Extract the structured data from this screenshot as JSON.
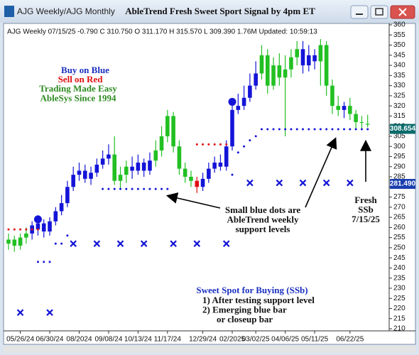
{
  "window": {
    "tab": "AJG Weekly/AJG Monthly",
    "title": "AbleTrend Fresh Sweet Sport Signal by 4pm ET"
  },
  "chart_data": {
    "type": "candlestick",
    "header": "AJG  Weekly 07/15/25 -0.790 C 310.750 O 311.170 H 315.570 L 309.390 1.76M Updated: 10:59:13",
    "categories": [
      null,
      null,
      "05/26/24",
      null,
      null,
      null,
      null,
      "06/30/24",
      null,
      null,
      null,
      null,
      "08/2024",
      null,
      null,
      null,
      null,
      "09/08/24",
      null,
      null,
      null,
      null,
      "10/13/24",
      null,
      null,
      null,
      null,
      "11/17/24",
      null,
      null,
      null,
      null,
      null,
      "12/29/24",
      null,
      null,
      null,
      null,
      "02/2025",
      null,
      null,
      null,
      "03/02/25",
      null,
      null,
      null,
      null,
      "04/06/25",
      null,
      null,
      null,
      null,
      "05/11/25",
      null,
      null,
      null,
      null,
      null,
      "06/22/25",
      null,
      null,
      null
    ],
    "open": [
      252,
      254,
      251,
      255,
      257,
      259,
      262,
      258,
      263,
      268,
      272,
      280,
      286,
      288,
      284,
      287,
      291,
      294,
      296,
      283,
      286,
      290,
      288,
      292,
      288,
      293,
      298,
      305,
      315,
      300,
      289,
      285,
      283,
      280,
      284,
      289,
      292,
      290,
      300,
      318,
      320,
      324,
      330,
      336,
      345,
      330,
      340,
      334,
      338,
      344,
      348,
      340,
      345,
      342,
      350,
      330,
      320,
      318,
      320,
      316,
      312,
      311.17
    ],
    "close": [
      254,
      251,
      255,
      257,
      261,
      262,
      258,
      263,
      268,
      272,
      280,
      286,
      288,
      284,
      287,
      291,
      294,
      296,
      283,
      286,
      290,
      288,
      292,
      288,
      293,
      298,
      305,
      315,
      300,
      289,
      285,
      283,
      280,
      284,
      289,
      292,
      290,
      300,
      318,
      320,
      324,
      330,
      336,
      345,
      330,
      340,
      334,
      338,
      344,
      348,
      340,
      345,
      342,
      350,
      330,
      320,
      318,
      320,
      316,
      312,
      312,
      310.75
    ],
    "high": [
      257,
      256,
      257,
      260,
      263,
      266,
      264,
      265,
      270,
      276,
      283,
      290,
      292,
      291,
      290,
      294,
      298,
      301,
      305,
      290,
      293,
      295,
      296,
      294,
      297,
      303,
      310,
      318,
      317,
      303,
      292,
      288,
      285,
      287,
      292,
      295,
      296,
      303,
      322,
      326,
      330,
      336,
      342,
      350,
      348,
      344,
      346,
      345,
      348,
      352,
      352,
      350,
      348,
      353,
      352,
      333,
      325,
      322,
      324,
      318,
      315,
      315.57
    ],
    "low": [
      249,
      248,
      249,
      252,
      254,
      256,
      255,
      256,
      261,
      266,
      270,
      278,
      283,
      282,
      281,
      285,
      289,
      291,
      281,
      279,
      282,
      284,
      286,
      285,
      286,
      290,
      295,
      302,
      297,
      286,
      282,
      280,
      277,
      278,
      282,
      287,
      288,
      288,
      298,
      316,
      318,
      322,
      328,
      333,
      326,
      328,
      330,
      305,
      334,
      340,
      336,
      337,
      338,
      330,
      325,
      316,
      315,
      314,
      313,
      309,
      309,
      309.39
    ],
    "candle_colors": [
      "#22c022",
      "#22c022",
      "#22c022",
      "#22c022",
      "#1414d8",
      "#1414d8",
      "#1414d8",
      "#1414d8",
      "#1414d8",
      "#1414d8",
      "#1414d8",
      "#1414d8",
      "#1414d8",
      "#1414d8",
      "#1414d8",
      "#1414d8",
      "#1414d8",
      "#1414d8",
      "#22c022",
      "#22c022",
      "#22c022",
      "#1414d8",
      "#1414d8",
      "#1414d8",
      "#1414d8",
      "#22c022",
      "#22c022",
      "#22c022",
      "#22c022",
      "#22c022",
      "#22c022",
      "#22c022",
      "#e01010",
      "#1414d8",
      "#1414d8",
      "#1414d8",
      "#1414d8",
      "#1414d8",
      "#1414d8",
      "#1414d8",
      "#1414d8",
      "#1414d8",
      "#1414d8",
      "#22c022",
      "#22c022",
      "#22c022",
      "#22c022",
      "#22c022",
      "#22c022",
      "#22c022",
      "#1414d8",
      "#1414d8",
      "#1414d8",
      "#22c022",
      "#22c022",
      "#22c022",
      "#22c022",
      "#1414d8",
      "#22c022",
      "#22c022",
      "#22c022",
      "#22c022"
    ],
    "markers": [
      {
        "kind": "dot",
        "color": "#1414d8",
        "values": [
          null,
          null,
          null,
          null,
          null,
          243,
          243,
          243,
          252,
          252,
          256,
          null,
          null,
          null,
          null,
          null,
          279,
          279,
          279,
          279,
          279,
          279,
          279,
          279,
          279,
          279,
          279,
          279,
          null,
          null,
          null,
          null,
          null,
          null,
          null,
          null,
          null,
          null,
          286,
          297,
          300,
          303,
          305,
          308.5,
          308.5,
          308.5,
          308.5,
          308.5,
          308.5,
          308.5,
          308.5,
          308.5,
          308.5,
          308.5,
          308.5,
          308.5,
          308.5,
          308.5,
          308.5,
          308.5,
          308.5,
          308.5
        ]
      },
      {
        "kind": "dot",
        "color": "#e01010",
        "values": [
          259,
          259,
          259,
          259,
          259,
          259,
          null,
          null,
          null,
          null,
          null,
          null,
          null,
          null,
          null,
          null,
          null,
          null,
          null,
          null,
          null,
          null,
          null,
          null,
          null,
          null,
          null,
          null,
          null,
          null,
          null,
          null,
          301,
          301,
          301,
          301,
          301,
          301,
          null,
          null,
          null,
          null,
          null,
          null,
          null,
          null,
          null,
          null,
          null,
          null,
          null,
          null,
          null,
          null,
          null,
          null,
          null,
          null,
          null,
          null,
          null,
          null
        ]
      },
      {
        "kind": "cross",
        "color": "#1414d8",
        "values": [
          null,
          null,
          218,
          null,
          null,
          null,
          null,
          218,
          null,
          null,
          null,
          252,
          null,
          null,
          null,
          252,
          null,
          null,
          null,
          252,
          null,
          null,
          null,
          252,
          null,
          null,
          null,
          null,
          252,
          null,
          null,
          null,
          252,
          null,
          null,
          null,
          null,
          252,
          null,
          null,
          null,
          282,
          null,
          null,
          null,
          null,
          282,
          null,
          null,
          null,
          282,
          null,
          null,
          null,
          282,
          null,
          null,
          null,
          282,
          null,
          null,
          null
        ]
      },
      {
        "kind": "circle",
        "color": "#1414d8",
        "values": [
          null,
          null,
          null,
          null,
          null,
          264,
          null,
          null,
          null,
          null,
          null,
          null,
          null,
          null,
          null,
          null,
          null,
          null,
          null,
          null,
          null,
          null,
          null,
          null,
          null,
          null,
          null,
          null,
          null,
          null,
          null,
          null,
          null,
          null,
          null,
          null,
          null,
          null,
          322,
          null,
          null,
          null,
          null,
          null,
          null,
          null,
          null,
          null,
          null,
          null,
          null,
          null,
          null,
          null,
          null,
          null,
          null,
          null,
          null,
          null,
          null,
          null
        ]
      }
    ],
    "ylim": [
      210,
      360
    ],
    "yticks": [
      210,
      215,
      220,
      225,
      230,
      235,
      240,
      245,
      250,
      255,
      260,
      265,
      270,
      275,
      280,
      285,
      290,
      295,
      300,
      305,
      310,
      315,
      320,
      325,
      330,
      335,
      340,
      345,
      350,
      355,
      360
    ],
    "price_labels": [
      {
        "value": 308.654,
        "color": "#0b6b6b"
      },
      {
        "value": 281.49,
        "label": "281.490",
        "color": "#1a3fb0"
      }
    ],
    "annotations": [
      {
        "lines": [
          "Buy on Blue"
        ],
        "color": "#1a2fbf"
      },
      {
        "lines": [
          "Sell on Red"
        ],
        "color": "#e01010"
      },
      {
        "lines": [
          "Trading Made Easy",
          "AbleSys Since 1994"
        ],
        "color": "#2e8b22"
      },
      {
        "lines": [
          "Small blue dots are",
          "AbleTrend weekly",
          "support levels"
        ],
        "color": "#111111"
      },
      {
        "lines": [
          "Fresh",
          "SSb",
          "7/15/25"
        ],
        "color": "#111111"
      },
      {
        "lines": [
          "Sweet Spot for Buying (SSb)"
        ],
        "color": "#1a2fbf"
      },
      {
        "lines": [
          "1) After testing support level",
          "2) Emerging blue bar",
          "or closeup bar"
        ],
        "color": "#111111"
      }
    ]
  }
}
